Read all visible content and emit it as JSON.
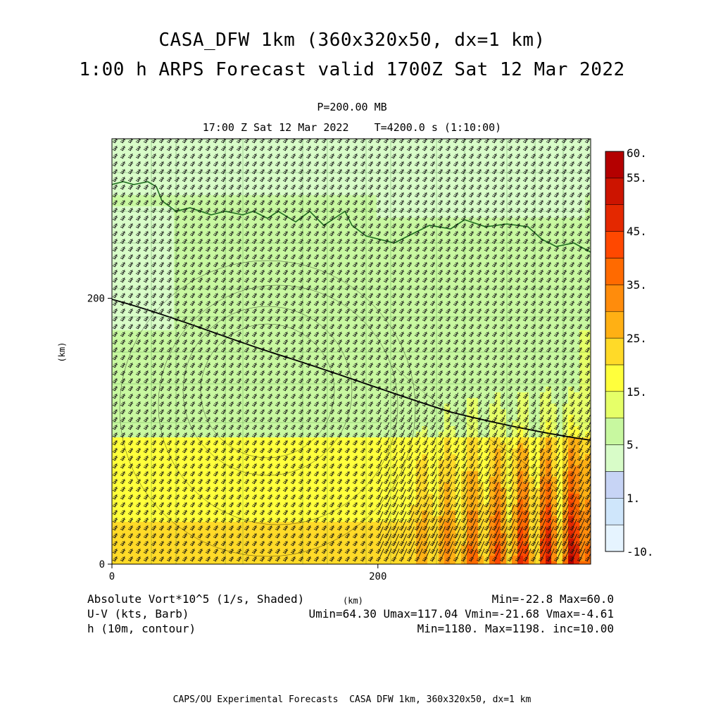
{
  "header": {
    "title_line1": "CASA_DFW 1km (360x320x50, dx=1 km)",
    "title_line2": "1:00 h ARPS Forecast valid 1700Z Sat 12 Mar 2022",
    "level": "P=200.00 MB",
    "time_line": "17:00 Z Sat 12 Mar 2022    T=4200.0 s (1:10:00)"
  },
  "chart_data": {
    "type": "heatmap",
    "xlabel": "(km)",
    "ylabel": "(km)",
    "x_ticks": [
      "0",
      "200"
    ],
    "y_ticks": [
      "0",
      "200"
    ],
    "xlim": [
      0,
      360
    ],
    "ylim": [
      0,
      320
    ],
    "shaded_field": "Absolute Vort*10^5 (1/s, Shaded)",
    "colorbar": {
      "labels": [
        "60.",
        "55.",
        "45.",
        "35.",
        "25.",
        "15.",
        "5.",
        "1.",
        "-10."
      ],
      "levels": [
        -10,
        1,
        5,
        15,
        25,
        35,
        45,
        55,
        60
      ],
      "colors": [
        "#e6f4ff",
        "#cfe6fb",
        "#c7d4f5",
        "#d8fcc8",
        "#c8f8a0",
        "#e6ff68",
        "#ffff3c",
        "#ffda28",
        "#ffb014",
        "#ff8c0c",
        "#ff6a00",
        "#ff4800",
        "#e42800",
        "#cc1400",
        "#b40000"
      ]
    },
    "stats": {
      "vort": "Min=-22.8 Max=60.0",
      "wind": "Umin=64.30 Umax=117.04 Vmin=-21.68 Vmax=-4.61",
      "height": "Min=1180. Max=1198. inc=10.00"
    },
    "legend": {
      "vort": "Absolute Vort*10^5 (1/s, Shaded)",
      "wind": "U-V (kts, Barb)",
      "height": "h (10m, contour)"
    },
    "x_unit": "(km)"
  },
  "credit": "CAPS/OU Experimental Forecasts  CASA DFW 1km, 360x320x50, dx=1 km"
}
